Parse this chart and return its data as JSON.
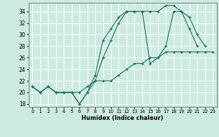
{
  "xlabel": "Humidex (Indice chaleur)",
  "bg_color": "#cceae2",
  "line_color": "#1a6b5a",
  "grid_color": "#ffffff",
  "xlim": [
    -0.5,
    23.5
  ],
  "ylim": [
    17.5,
    35.5
  ],
  "yticks": [
    18,
    20,
    22,
    24,
    26,
    28,
    30,
    32,
    34
  ],
  "xticks": [
    0,
    1,
    2,
    3,
    4,
    5,
    6,
    7,
    8,
    9,
    10,
    11,
    12,
    13,
    14,
    15,
    16,
    17,
    18,
    19,
    20,
    21,
    22,
    23
  ],
  "line1_x": [
    0,
    1,
    2,
    3,
    4,
    5,
    6,
    7,
    8,
    9,
    10,
    11,
    12,
    13,
    14,
    15,
    16,
    17,
    18,
    19,
    20,
    21
  ],
  "line1_y": [
    21,
    20,
    21,
    20,
    20,
    20,
    18,
    20,
    23,
    29,
    31,
    33,
    34,
    34,
    34,
    34,
    34,
    35,
    35,
    34,
    31,
    28
  ],
  "line2_x": [
    0,
    1,
    2,
    3,
    4,
    5,
    6,
    7,
    8,
    9,
    10,
    11,
    12,
    13,
    14,
    15,
    16,
    17,
    18,
    19,
    20,
    21,
    22
  ],
  "line2_y": [
    21,
    20,
    21,
    20,
    20,
    20,
    18,
    20,
    22,
    26,
    29,
    32,
    34,
    34,
    34,
    25,
    26,
    28,
    34,
    34,
    33,
    30,
    28
  ],
  "line3_x": [
    0,
    1,
    2,
    3,
    4,
    5,
    6,
    7,
    8,
    9,
    10,
    11,
    12,
    13,
    14,
    15,
    16,
    17,
    18,
    19,
    20,
    21,
    22,
    23
  ],
  "line3_y": [
    21,
    20,
    21,
    20,
    20,
    20,
    20,
    21,
    22,
    22,
    22,
    23,
    24,
    25,
    25,
    26,
    26,
    27,
    27,
    27,
    27,
    27,
    27,
    27
  ]
}
